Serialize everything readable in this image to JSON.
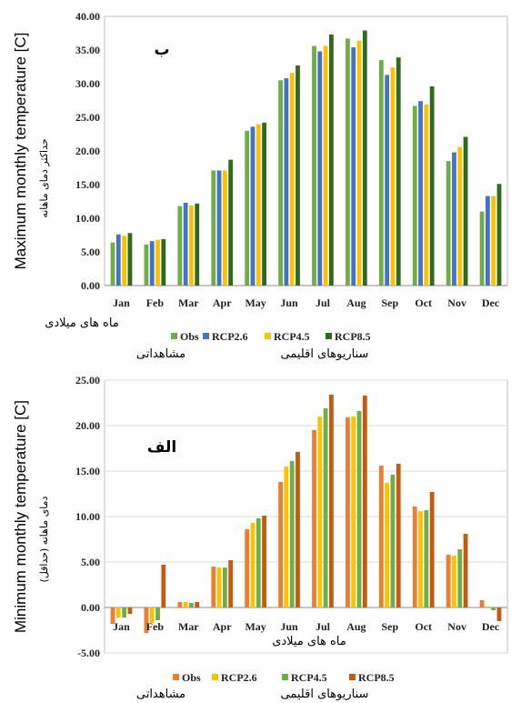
{
  "colors": {
    "top": [
      "#70ad47",
      "#4472c4",
      "#ffc000",
      "#2e6b1e"
    ],
    "bottom": [
      "#ed7d31",
      "#ffc000",
      "#70ad47",
      "#c55a11"
    ],
    "grid": "#d9d9d9"
  },
  "chart_data": [
    {
      "type": "bar",
      "panel_label": "ب",
      "ylabel": "Maximum monthly temperature [C]",
      "ylabel_fa": "حداکثر دمای ماهانه",
      "xlabel_fa": "ماه های میلادی",
      "group_label_obs": "مشاهداتی",
      "group_label_scen": "سناریوهای اقلیمی",
      "ylim": [
        0,
        40
      ],
      "yticks": [
        "0.00",
        "5.00",
        "10.00",
        "15.00",
        "20.00",
        "25.00",
        "30.00",
        "35.00",
        "40.00"
      ],
      "grid": false,
      "legend_position": "bottom",
      "categories": [
        "Jan",
        "Feb",
        "Mar",
        "Apr",
        "May",
        "Jun",
        "Jul",
        "Aug",
        "Sep",
        "Oct",
        "Nov",
        "Dec"
      ],
      "series": [
        {
          "name": "Obs",
          "values": [
            6.4,
            6.1,
            11.8,
            17.1,
            23.0,
            30.5,
            35.6,
            36.7,
            33.5,
            26.7,
            18.5,
            11.0
          ]
        },
        {
          "name": "RCP2.6",
          "values": [
            7.6,
            6.6,
            12.3,
            17.1,
            23.6,
            30.8,
            34.8,
            35.4,
            31.3,
            27.4,
            19.8,
            13.3
          ]
        },
        {
          "name": "RCP4.5",
          "values": [
            7.4,
            6.8,
            11.9,
            17.1,
            24.0,
            31.6,
            35.6,
            36.4,
            32.4,
            26.9,
            20.6,
            13.3
          ]
        },
        {
          "name": "RCP8.5",
          "values": [
            7.8,
            6.9,
            12.2,
            18.7,
            24.2,
            32.7,
            37.3,
            37.9,
            33.9,
            29.6,
            22.1,
            15.1
          ]
        }
      ]
    },
    {
      "type": "bar",
      "panel_label": "الف",
      "ylabel": "Minimum monthly temperature [C]",
      "ylabel_fa": "دمای ماهانه (حداقل)",
      "xlabel_fa": "ماه های میلادی",
      "group_label_obs": "مشاهداتی",
      "group_label_scen": "سناریوهای اقلیمی",
      "ylim": [
        -5,
        25
      ],
      "yticks": [
        "-5.00",
        "0.00",
        "5.00",
        "10.00",
        "15.00",
        "20.00",
        "25.00"
      ],
      "grid": true,
      "legend_position": "bottom",
      "categories": [
        "Jan",
        "Feb",
        "Mar",
        "Apr",
        "May",
        "Jun",
        "Jul",
        "Aug",
        "Sep",
        "Oct",
        "Nov",
        "Dec"
      ],
      "series": [
        {
          "name": "Obs",
          "values": [
            -1.8,
            -2.8,
            0.6,
            4.5,
            8.6,
            13.8,
            19.5,
            20.9,
            15.6,
            11.1,
            5.8,
            0.8
          ]
        },
        {
          "name": "RCP2.6",
          "values": [
            -1.1,
            -1.7,
            0.6,
            4.4,
            9.3,
            15.5,
            21.0,
            21.0,
            13.7,
            10.6,
            5.7,
            0.1
          ]
        },
        {
          "name": "RCP4.5",
          "values": [
            -1.1,
            -1.4,
            0.5,
            4.4,
            9.8,
            16.1,
            21.9,
            21.6,
            14.6,
            10.7,
            6.4,
            -0.3
          ]
        },
        {
          "name": "RCP8.5",
          "values": [
            -0.7,
            4.7,
            0.6,
            5.2,
            10.1,
            17.1,
            23.4,
            23.3,
            15.8,
            12.7,
            8.1,
            -1.5
          ]
        }
      ]
    }
  ]
}
